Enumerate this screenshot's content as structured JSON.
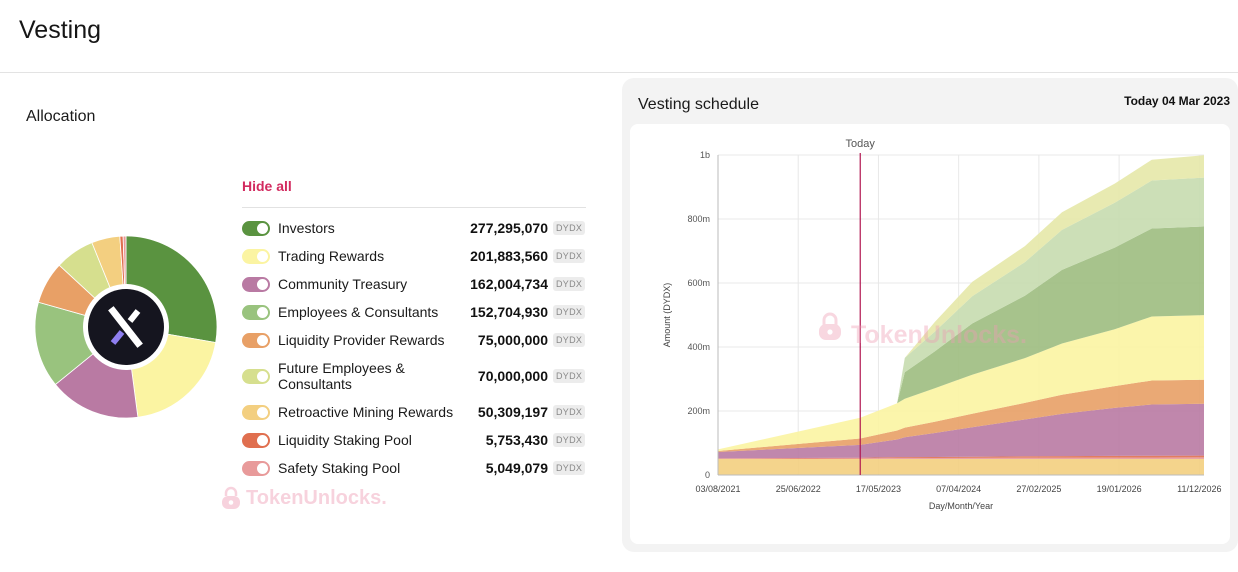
{
  "page": {
    "title": "Vesting"
  },
  "allocation": {
    "title": "Allocation",
    "hide_all": "Hide all",
    "items": [
      {
        "name": "Investors",
        "value": "277,295,070",
        "unit": "DYDX",
        "amount": 277295070,
        "color": "#5a9340",
        "enabled": true
      },
      {
        "name": "Trading Rewards",
        "value": "201,883,560",
        "unit": "DYDX",
        "amount": 201883560,
        "color": "#fbf4a2",
        "enabled": true
      },
      {
        "name": "Community Treasury",
        "value": "162,004,734",
        "unit": "DYDX",
        "amount": 162004734,
        "color": "#b97aa3",
        "enabled": true
      },
      {
        "name": "Employees & Consultants",
        "value": "152,704,930",
        "unit": "DYDX",
        "amount": 152704930,
        "color": "#99c37e",
        "enabled": true
      },
      {
        "name": "Liquidity Provider Rewards",
        "value": "75,000,000",
        "unit": "DYDX",
        "amount": 75000000,
        "color": "#e8a066",
        "enabled": true
      },
      {
        "name": "Future Employees & Consultants",
        "value": "70,000,000",
        "unit": "DYDX",
        "amount": 70000000,
        "color": "#d6df8e",
        "enabled": true
      },
      {
        "name": "Retroactive Mining Rewards",
        "value": "50,309,197",
        "unit": "DYDX",
        "amount": 50309197,
        "color": "#f3cf80",
        "enabled": true
      },
      {
        "name": "Liquidity Staking Pool",
        "value": "5,753,430",
        "unit": "DYDX",
        "amount": 5753430,
        "color": "#e06f4f",
        "enabled": true
      },
      {
        "name": "Safety Staking Pool",
        "value": "5,049,079",
        "unit": "DYDX",
        "amount": 5049079,
        "color": "#e89a9a",
        "enabled": true
      }
    ],
    "logo": {
      "letter": "X",
      "icon": "dydx-logo-icon"
    },
    "watermark": "TokenUnlocks."
  },
  "schedule": {
    "title": "Vesting schedule",
    "today_label": "Today 04 Mar 2023",
    "watermark": "TokenUnlocks."
  },
  "chart_data": {
    "type": "area",
    "stacked": true,
    "xlabel": "Day/Month/Year",
    "ylabel": "Amount (DYDX)",
    "x_ticks": [
      "03/08/2021",
      "25/06/2022",
      "17/05/2023",
      "07/04/2024",
      "27/02/2025",
      "19/01/2026",
      "11/12/2026"
    ],
    "x_range": [
      "03/08/2021",
      "30/12/2026"
    ],
    "y_ticks": [
      "0",
      "200m",
      "400m",
      "600m",
      "800m",
      "1b"
    ],
    "ylim": [
      0,
      1000000000
    ],
    "today_marker": {
      "label": "Today",
      "date": "04/03/2023"
    },
    "grid": true,
    "x": [
      "03/08/2021",
      "04/03/2023",
      "01/08/2023",
      "01/09/2023",
      "01/01/2024",
      "01/06/2024",
      "01/01/2025",
      "01/06/2025",
      "01/01/2026",
      "01/06/2026",
      "30/12/2026"
    ],
    "series": [
      {
        "name": "Retroactive Mining Rewards",
        "color": "#f3cf80",
        "values": [
          50000000,
          50000000,
          50000000,
          50000000,
          50000000,
          50000000,
          50000000,
          50000000,
          50000000,
          50000000,
          50000000
        ]
      },
      {
        "name": "Safety Staking Pool",
        "color": "#e89a9a",
        "values": [
          1000000,
          2000000,
          3000000,
          3000000,
          3000000,
          3500000,
          4000000,
          4200000,
          4500000,
          4800000,
          5000000
        ]
      },
      {
        "name": "Liquidity Staking Pool",
        "color": "#e06f4f",
        "values": [
          1000000,
          2000000,
          3000000,
          3000000,
          3200000,
          3800000,
          4300000,
          4800000,
          5200000,
          5500000,
          5700000
        ]
      },
      {
        "name": "Community Treasury",
        "color": "#b97aa3",
        "values": [
          20000000,
          40000000,
          55000000,
          62000000,
          75000000,
          92000000,
          115000000,
          132000000,
          150000000,
          160000000,
          162000000
        ]
      },
      {
        "name": "Liquidity Provider Rewards",
        "color": "#e8a066",
        "values": [
          3000000,
          20000000,
          28000000,
          30000000,
          35000000,
          42000000,
          52000000,
          60000000,
          68000000,
          75000000,
          75000000
        ]
      },
      {
        "name": "Trading Rewards",
        "color": "#fbf4a2",
        "values": [
          5000000,
          65000000,
          85000000,
          90000000,
          105000000,
          122000000,
          140000000,
          160000000,
          178000000,
          200000000,
          202000000
        ]
      },
      {
        "name": "Investors",
        "color": "#9dbd7f",
        "values": [
          0,
          0,
          0,
          83000000,
          115000000,
          160000000,
          195000000,
          230000000,
          255000000,
          275000000,
          277000000
        ]
      },
      {
        "name": "Employees & Consultants",
        "color": "#c6dcaf",
        "values": [
          0,
          0,
          0,
          45000000,
          62000000,
          85000000,
          105000000,
          125000000,
          140000000,
          150000000,
          152700000
        ]
      },
      {
        "name": "Future Employees & Consultants",
        "color": "#e5e8a8",
        "values": [
          0,
          0,
          0,
          0,
          30000000,
          45000000,
          50000000,
          55000000,
          60000000,
          65000000,
          70000000
        ]
      }
    ]
  }
}
